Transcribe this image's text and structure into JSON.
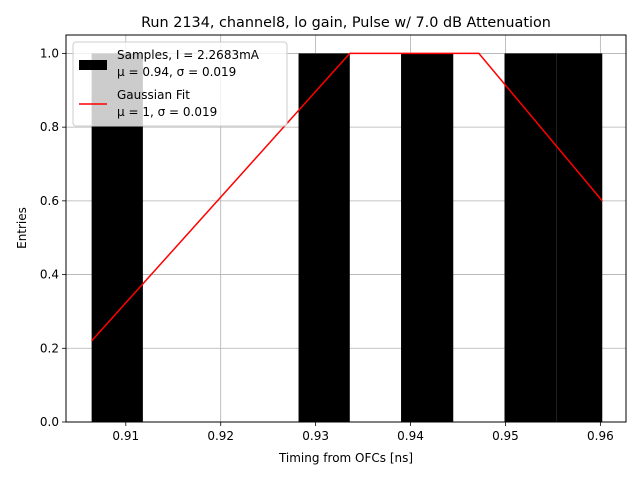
{
  "chart_data": {
    "type": "bar",
    "title": "Run 2134, channel8, lo gain, Pulse w/ 7.0 dB Attenuation",
    "xlabel": "Timing from OFCs [ns]",
    "ylabel": "Entries",
    "xlim": [
      0.9037,
      0.9627
    ],
    "ylim": [
      0,
      1.05
    ],
    "xticks": [
      "0.91",
      "0.92",
      "0.93",
      "0.94",
      "0.95",
      "0.96"
    ],
    "xtick_values": [
      0.91,
      0.92,
      0.93,
      0.94,
      0.95,
      0.96
    ],
    "yticks": [
      "0.0",
      "0.2",
      "0.4",
      "0.6",
      "0.8",
      "1.0"
    ],
    "ytick_values": [
      0.0,
      0.2,
      0.4,
      0.6,
      0.8,
      1.0
    ],
    "grid": true,
    "legend_position": "top-left",
    "bars": [
      {
        "x0": 0.9064,
        "x1": 0.9118,
        "value": 1
      },
      {
        "x0": 0.9282,
        "x1": 0.9336,
        "value": 1
      },
      {
        "x0": 0.939,
        "x1": 0.9445,
        "value": 1
      },
      {
        "x0": 0.9499,
        "x1": 0.9554,
        "value": 1
      },
      {
        "x0": 0.9554,
        "x1": 0.9602,
        "value": 1
      }
    ],
    "series": [
      {
        "name": "Samples, I = 2.2683mA",
        "stats": "μ = 0.94, σ = 0.019",
        "type": "bar",
        "color": "#000000"
      },
      {
        "name": "Gaussian Fit",
        "stats": "μ = 1, σ = 0.019",
        "type": "line",
        "color": "#ff0000",
        "x": [
          0.9064,
          0.9336,
          0.9472,
          0.9602
        ],
        "y": [
          0.22,
          1.0,
          1.0,
          0.6
        ]
      }
    ]
  }
}
